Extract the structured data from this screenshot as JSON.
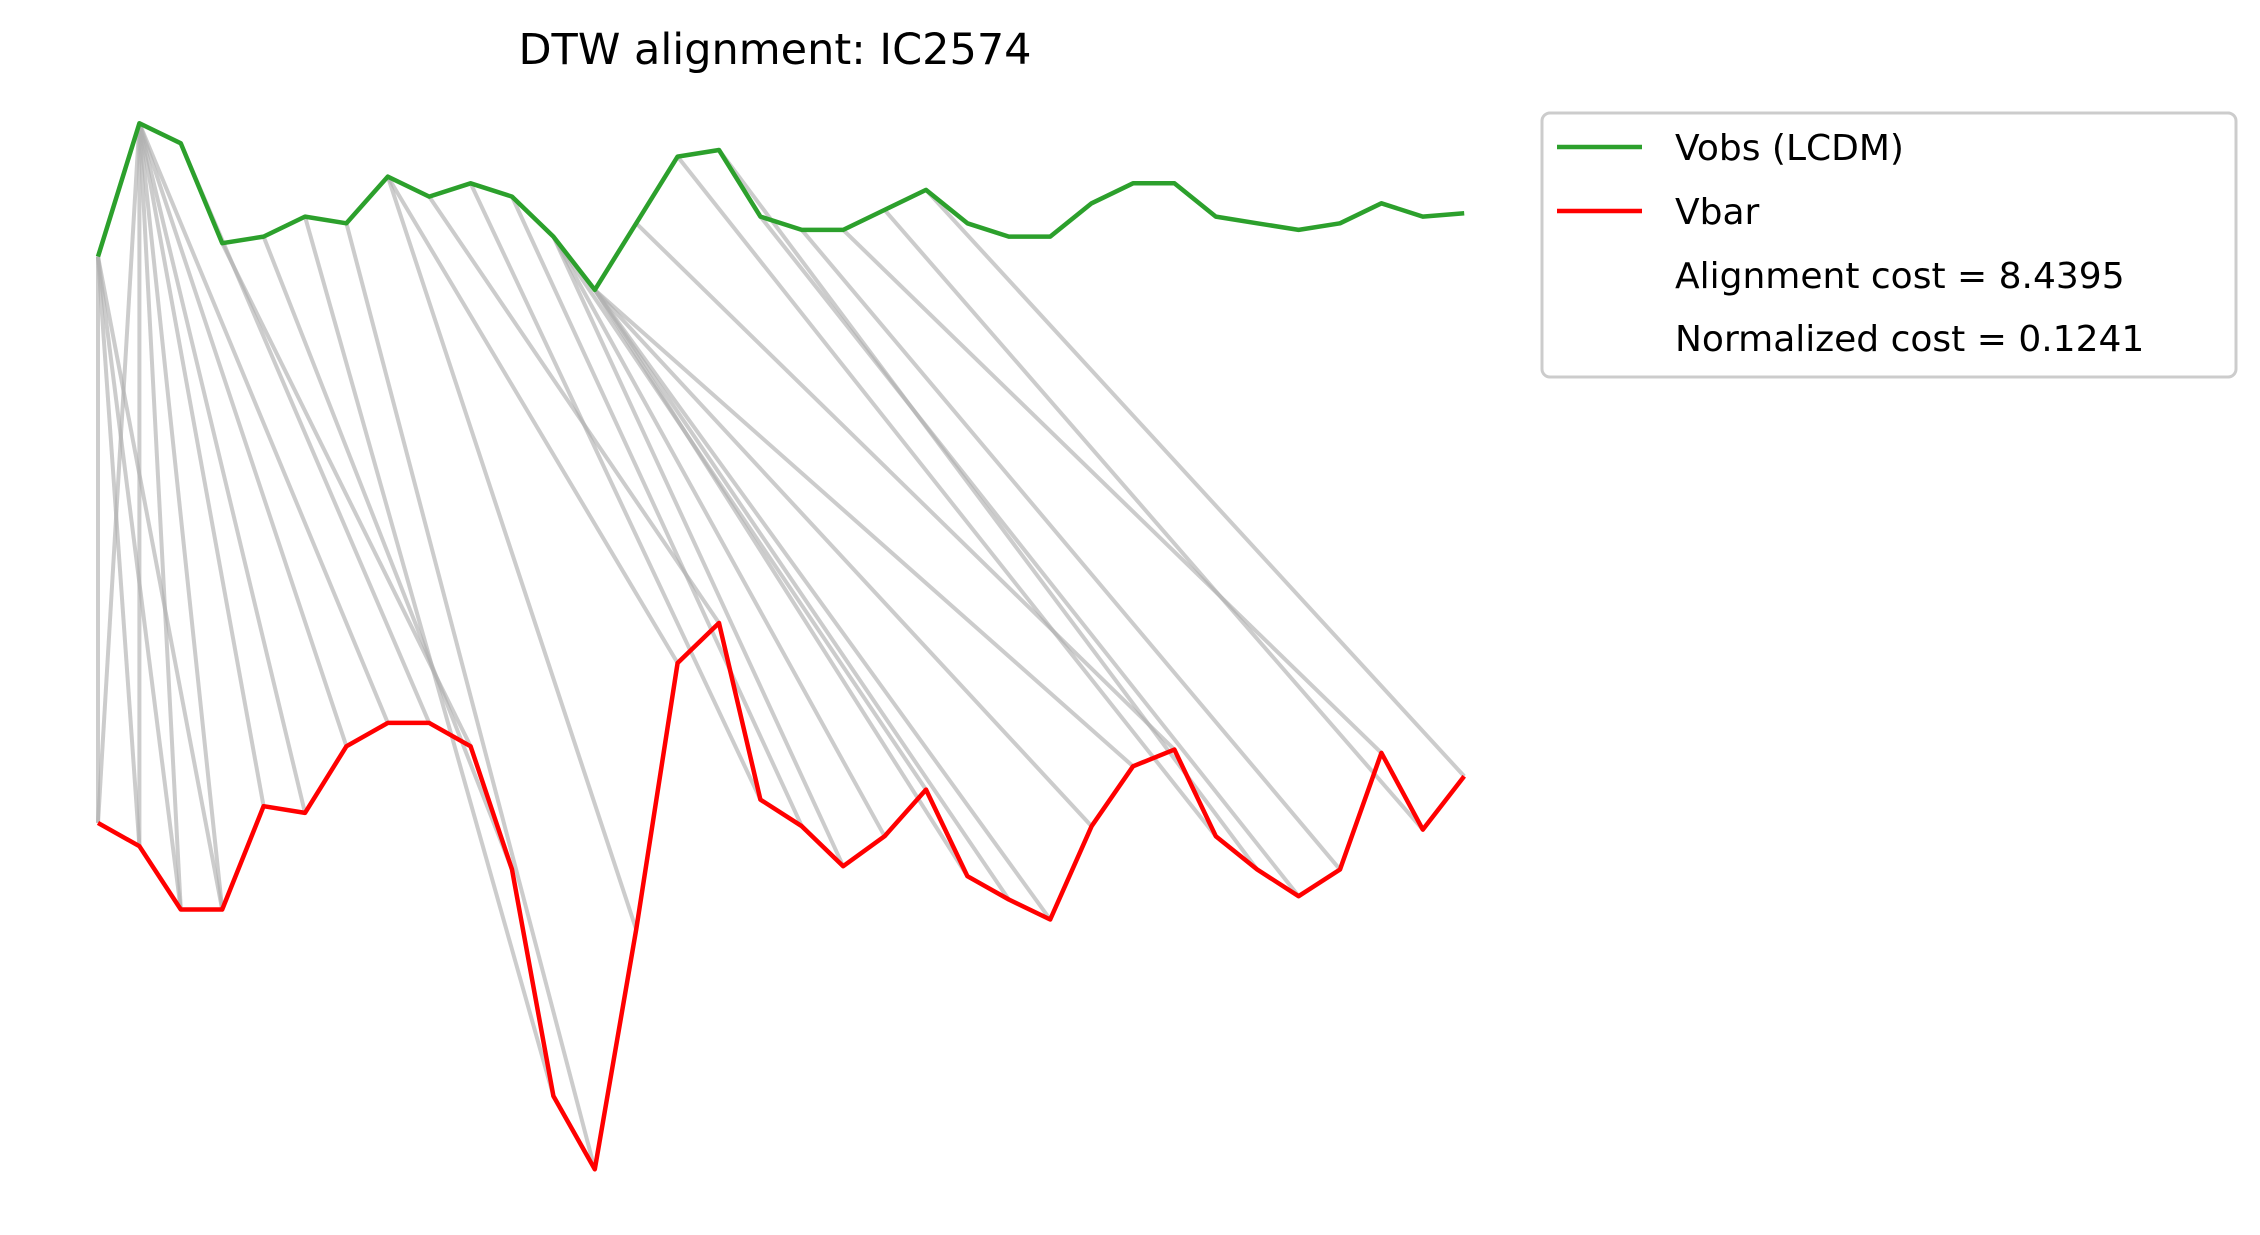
{
  "chart_data": {
    "type": "line",
    "title": "DTW alignment: IC2574",
    "x": [
      0,
      1,
      2,
      3,
      4,
      5,
      6,
      7,
      8,
      9,
      10,
      11,
      12,
      13,
      14,
      15,
      16,
      17,
      18,
      19,
      20,
      21,
      22,
      23,
      24,
      25,
      26,
      27,
      28,
      29,
      30,
      31,
      32,
      33
    ],
    "series": [
      {
        "name": "Vobs (LCDM)",
        "color": "#2ca02c",
        "values": [
          0.78,
          0.98,
          0.95,
          0.8,
          0.81,
          0.84,
          0.83,
          0.9,
          0.87,
          0.89,
          0.87,
          0.81,
          0.73,
          0.83,
          0.93,
          0.94,
          0.84,
          0.82,
          0.82,
          0.85,
          0.88,
          0.83,
          0.81,
          0.81,
          0.86,
          0.89,
          0.89,
          0.84,
          0.83,
          0.82,
          0.83,
          0.86,
          0.84,
          0.845
        ]
      },
      {
        "name": "Vbar",
        "color": "#ff0000",
        "values": [
          -0.07,
          -0.105,
          -0.2,
          -0.2,
          -0.045,
          -0.055,
          0.045,
          0.08,
          0.08,
          0.045,
          -0.14,
          -0.48,
          -0.59,
          -0.23,
          0.17,
          0.23,
          -0.035,
          -0.075,
          -0.135,
          -0.09,
          -0.02,
          -0.15,
          -0.185,
          -0.215,
          -0.075,
          0.015,
          0.04,
          -0.09,
          -0.14,
          -0.18,
          -0.14,
          0.035,
          -0.08,
          0.0
        ]
      }
    ],
    "alignment_path": [
      [
        0,
        0
      ],
      [
        0,
        1
      ],
      [
        0,
        2
      ],
      [
        0,
        3
      ],
      [
        1,
        0
      ],
      [
        1,
        1
      ],
      [
        1,
        2
      ],
      [
        1,
        3
      ],
      [
        1,
        4
      ],
      [
        1,
        5
      ],
      [
        1,
        6
      ],
      [
        1,
        7
      ],
      [
        2,
        8
      ],
      [
        3,
        9
      ],
      [
        4,
        10
      ],
      [
        5,
        11
      ],
      [
        6,
        12
      ],
      [
        7,
        13
      ],
      [
        7,
        14
      ],
      [
        8,
        15
      ],
      [
        9,
        16
      ],
      [
        10,
        17
      ],
      [
        11,
        18
      ],
      [
        11,
        19
      ],
      [
        11,
        20
      ],
      [
        12,
        21
      ],
      [
        12,
        22
      ],
      [
        12,
        23
      ],
      [
        12,
        24
      ],
      [
        12,
        25
      ],
      [
        13,
        26
      ],
      [
        14,
        27
      ],
      [
        15,
        28
      ],
      [
        16,
        29
      ],
      [
        17,
        30
      ],
      [
        18,
        31
      ],
      [
        19,
        32
      ],
      [
        20,
        33
      ]
    ],
    "legend": {
      "placement": "outside upper-right",
      "entries": [
        "Vobs (LCDM)",
        "Vbar"
      ],
      "text_entries": [
        "Alignment cost = 8.4395",
        "Normalized cost = 0.1241"
      ]
    },
    "axes_visible": false,
    "grid": false,
    "connector_color": "#b0b0b0"
  }
}
